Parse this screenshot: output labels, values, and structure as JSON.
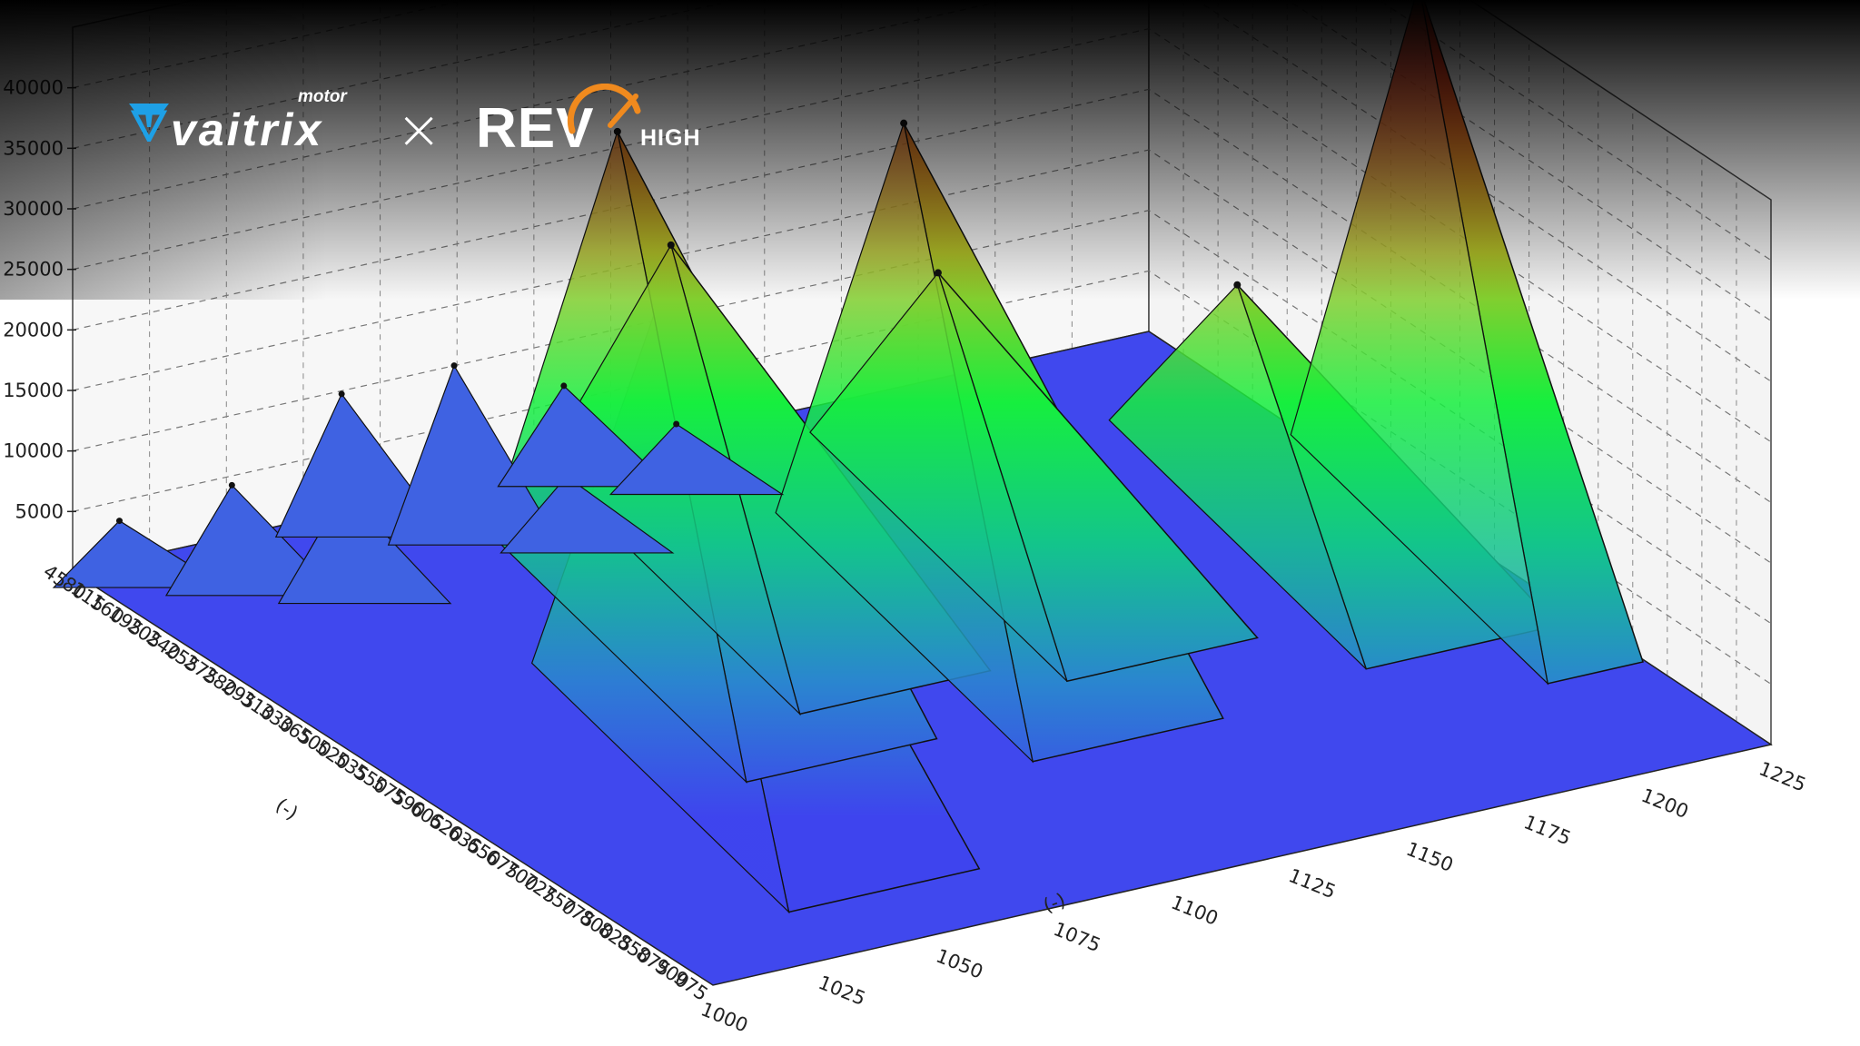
{
  "brand": {
    "left_logo": "vaitrix",
    "left_sublogo": "motor",
    "separator": "×",
    "right_logo_main": "REV",
    "right_logo_sub": "HIGH",
    "accent_blue": "#1ea0e6",
    "accent_orange": "#f08a1e"
  },
  "chart_data": {
    "type": "surface3d",
    "z_ticks": [
      "5000",
      "10000",
      "15000",
      "20000",
      "25000",
      "30000",
      "35000",
      "40000"
    ],
    "zlim": [
      0,
      45000
    ],
    "x_ticks": [
      "1000",
      "1025",
      "1050",
      "1075",
      "1100",
      "1125",
      "1150",
      "1175",
      "1200",
      "1225"
    ],
    "x_axis_label": "(-)",
    "y_ticks": [
      "45",
      "80",
      "115",
      "160",
      "195",
      "205",
      "240",
      "255",
      "275",
      "280",
      "295",
      "310",
      "330",
      "365",
      "500",
      "520",
      "535",
      "550",
      "575",
      "590",
      "605",
      "620",
      "635",
      "650",
      "675",
      "700",
      "725",
      "750",
      "775",
      "800",
      "825",
      "850",
      "875",
      "900",
      "975"
    ],
    "y_axis_label": "(-)",
    "colormap": [
      "#3e44ee",
      "#2a86cf",
      "#13c48c",
      "#16ef3e",
      "#b2c028",
      "#ea3c1e"
    ],
    "surface_peaks": [
      {
        "x": "1050",
        "z": 37000
      },
      {
        "x": "1075",
        "z": 40000
      },
      {
        "x": "1100",
        "z": 25000
      },
      {
        "x": "1125",
        "z": 39000
      },
      {
        "x": "1150",
        "z": 20000
      },
      {
        "x": "1200",
        "z": 18000
      },
      {
        "x": "1225",
        "z": 44000
      }
    ]
  }
}
